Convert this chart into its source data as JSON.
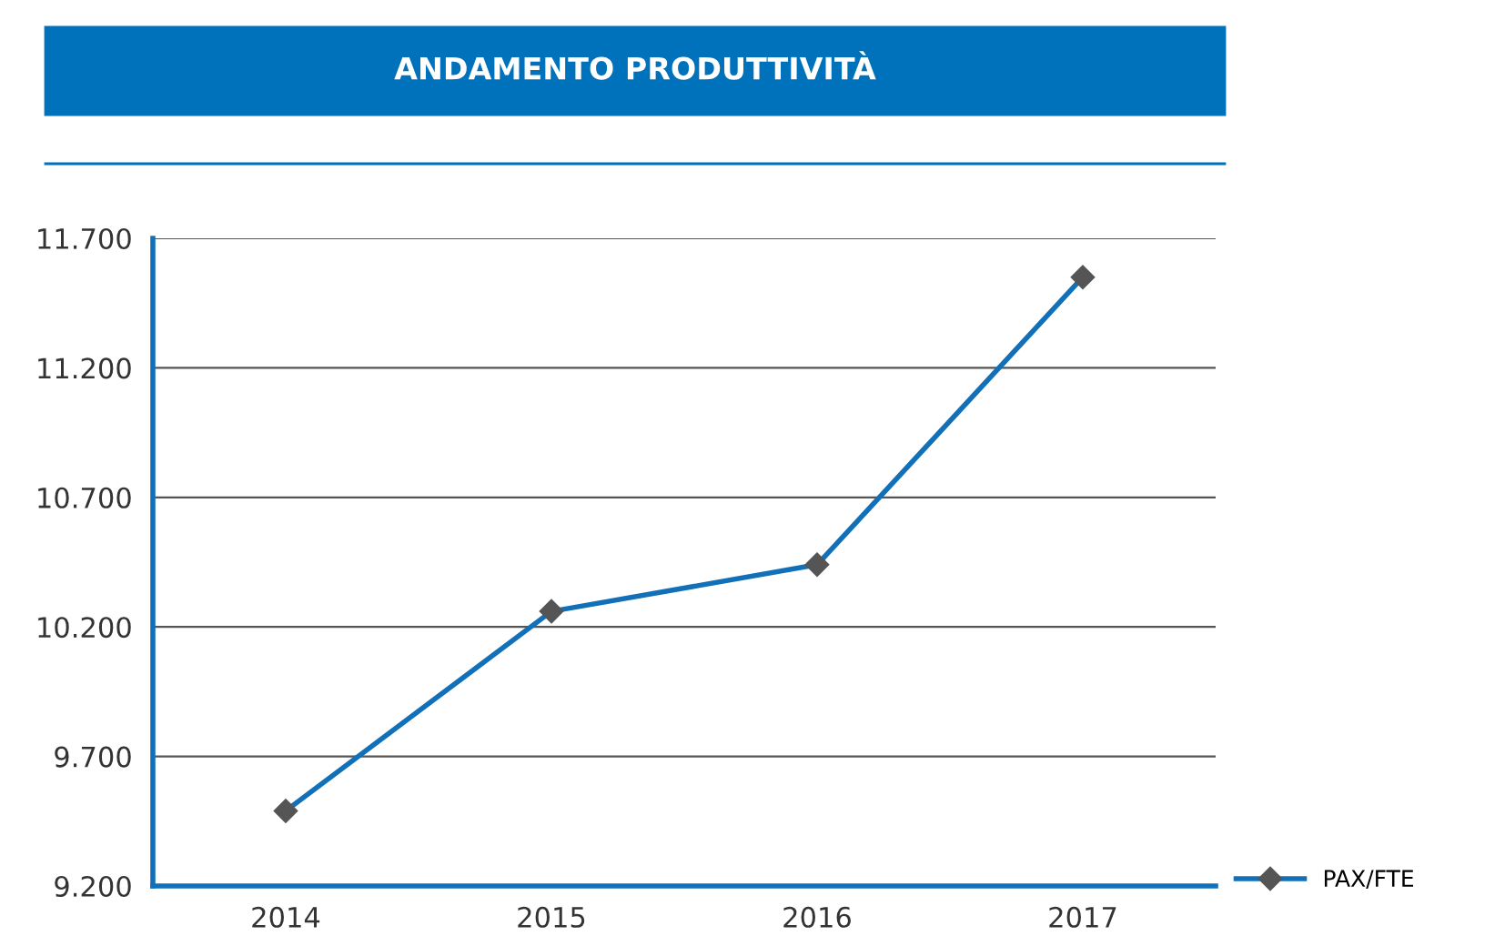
{
  "chart_data": {
    "type": "line",
    "title": "ANDAMENTO PRODUTTIVITÀ",
    "categories": [
      "2014",
      "2015",
      "2016",
      "2017"
    ],
    "series": [
      {
        "name": "PAX/FTE",
        "color": "#1170b8",
        "values": [
          9490,
          10260,
          10440,
          11550
        ]
      }
    ],
    "ylim": [
      9200,
      11700
    ],
    "yticks": [
      {
        "value": 9200,
        "label": "9.200"
      },
      {
        "value": 9700,
        "label": "9.700"
      },
      {
        "value": 10200,
        "label": "10.200"
      },
      {
        "value": 10700,
        "label": "10.700"
      },
      {
        "value": 11200,
        "label": "11.200"
      },
      {
        "value": 11700,
        "label": "11.700"
      }
    ],
    "grid": "y",
    "legend": "bottom right",
    "marker": "diamond",
    "line_style": "solid"
  }
}
